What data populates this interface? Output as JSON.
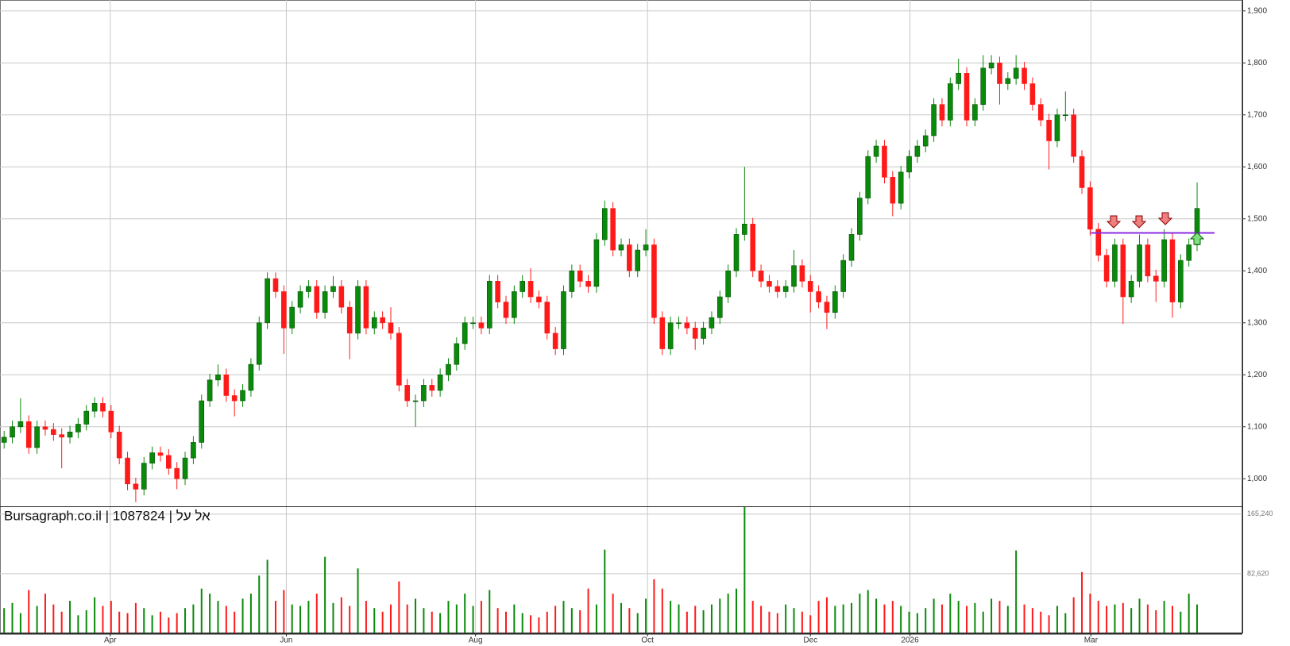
{
  "chart_data": [
    {
      "type": "candlestick",
      "up_color": "#0a8a0a",
      "down_color": "#ff1a1a",
      "xlim": [
        -0.5,
        150.5
      ],
      "ylim": [
        947,
        1921
      ],
      "yticks": [
        {
          "value": 1000,
          "label": "1,000"
        },
        {
          "value": 1100,
          "label": "1,100"
        },
        {
          "value": 1200,
          "label": "1,200"
        },
        {
          "value": 1300,
          "label": "1,300"
        },
        {
          "value": 1400,
          "label": "1,400"
        },
        {
          "value": 1500,
          "label": "1,500"
        },
        {
          "value": 1600,
          "label": "1,600"
        },
        {
          "value": 1700,
          "label": "1,700"
        },
        {
          "value": 1800,
          "label": "1,800"
        },
        {
          "value": 1900,
          "label": "1,900"
        }
      ],
      "grid": true,
      "level": 1473,
      "level_color": "#8a2be2",
      "open": [
        1070,
        1080,
        1100,
        1110,
        1060,
        1100,
        1095,
        1085,
        1080,
        1090,
        1105,
        1130,
        1145,
        1130,
        1090,
        1040,
        990,
        980,
        1030,
        1050,
        1045,
        1020,
        1000,
        1040,
        1070,
        1150,
        1190,
        1200,
        1160,
        1150,
        1170,
        1220,
        1300,
        1385,
        1360,
        1290,
        1330,
        1360,
        1370,
        1320,
        1360,
        1370,
        1330,
        1280,
        1370,
        1290,
        1310,
        1300,
        1280,
        1180,
        1150,
        1150,
        1180,
        1170,
        1200,
        1220,
        1260,
        1300,
        1300,
        1290,
        1380,
        1340,
        1310,
        1360,
        1380,
        1350,
        1340,
        1280,
        1250,
        1360,
        1400,
        1380,
        1370,
        1460,
        1520,
        1440,
        1450,
        1400,
        1440,
        1450,
        1310,
        1250,
        1300,
        1300,
        1290,
        1270,
        1290,
        1310,
        1350,
        1400,
        1470,
        1490,
        1400,
        1380,
        1370,
        1360,
        1370,
        1410,
        1380,
        1360,
        1340,
        1320,
        1360,
        1420,
        1470,
        1540,
        1620,
        1640,
        1580,
        1530,
        1590,
        1620,
        1640,
        1660,
        1720,
        1690,
        1760,
        1780,
        1690,
        1720,
        1790,
        1800,
        1760,
        1770,
        1790,
        1760,
        1720,
        1690,
        1650,
        1700,
        1700,
        1620,
        1560,
        1480,
        1430,
        1380,
        1450,
        1350,
        1380,
        1450,
        1390,
        1380,
        1460,
        1340,
        1420,
        1450
      ],
      "high": [
        1092,
        1112,
        1155,
        1122,
        1112,
        1112,
        1107,
        1097,
        1102,
        1117,
        1142,
        1157,
        1157,
        1142,
        1102,
        1052,
        1002,
        1042,
        1062,
        1062,
        1057,
        1032,
        1052,
        1082,
        1162,
        1202,
        1220,
        1212,
        1172,
        1182,
        1232,
        1312,
        1397,
        1397,
        1372,
        1342,
        1372,
        1382,
        1382,
        1372,
        1390,
        1382,
        1342,
        1382,
        1382,
        1322,
        1322,
        1330,
        1292,
        1192,
        1162,
        1192,
        1192,
        1212,
        1232,
        1272,
        1312,
        1312,
        1312,
        1392,
        1392,
        1352,
        1372,
        1392,
        1405,
        1362,
        1352,
        1292,
        1372,
        1412,
        1412,
        1392,
        1472,
        1535,
        1532,
        1462,
        1462,
        1452,
        1480,
        1462,
        1322,
        1312,
        1312,
        1312,
        1302,
        1302,
        1322,
        1362,
        1412,
        1482,
        1600,
        1502,
        1412,
        1392,
        1382,
        1382,
        1440,
        1422,
        1392,
        1372,
        1352,
        1372,
        1432,
        1482,
        1552,
        1632,
        1652,
        1652,
        1592,
        1602,
        1632,
        1652,
        1672,
        1732,
        1732,
        1772,
        1808,
        1792,
        1732,
        1815,
        1815,
        1812,
        1782,
        1815,
        1802,
        1772,
        1732,
        1702,
        1712,
        1745,
        1712,
        1632,
        1572,
        1492,
        1442,
        1462,
        1462,
        1392,
        1470,
        1462,
        1402,
        1480,
        1472,
        1432,
        1462,
        1570
      ],
      "low": [
        1058,
        1068,
        1088,
        1048,
        1048,
        1083,
        1073,
        1020,
        1068,
        1078,
        1093,
        1118,
        1118,
        1078,
        1028,
        978,
        955,
        968,
        1018,
        1033,
        1008,
        980,
        988,
        1028,
        1058,
        1138,
        1178,
        1148,
        1120,
        1138,
        1158,
        1208,
        1288,
        1348,
        1240,
        1278,
        1318,
        1348,
        1308,
        1308,
        1348,
        1318,
        1230,
        1268,
        1278,
        1278,
        1288,
        1268,
        1168,
        1138,
        1100,
        1138,
        1158,
        1158,
        1188,
        1208,
        1248,
        1288,
        1278,
        1278,
        1328,
        1298,
        1298,
        1348,
        1338,
        1328,
        1268,
        1238,
        1238,
        1348,
        1368,
        1358,
        1358,
        1448,
        1428,
        1428,
        1388,
        1388,
        1428,
        1298,
        1238,
        1238,
        1288,
        1278,
        1248,
        1258,
        1278,
        1298,
        1338,
        1388,
        1458,
        1388,
        1368,
        1358,
        1348,
        1348,
        1358,
        1368,
        1320,
        1328,
        1288,
        1308,
        1348,
        1408,
        1458,
        1528,
        1608,
        1568,
        1505,
        1518,
        1578,
        1608,
        1628,
        1648,
        1678,
        1678,
        1748,
        1678,
        1678,
        1708,
        1778,
        1720,
        1748,
        1758,
        1748,
        1708,
        1678,
        1595,
        1638,
        1688,
        1608,
        1548,
        1468,
        1418,
        1368,
        1368,
        1298,
        1338,
        1368,
        1378,
        1340,
        1368,
        1310,
        1328,
        1408,
        1438
      ],
      "close": [
        1080,
        1100,
        1110,
        1060,
        1100,
        1095,
        1085,
        1080,
        1090,
        1105,
        1130,
        1145,
        1130,
        1090,
        1040,
        990,
        980,
        1030,
        1050,
        1045,
        1020,
        1000,
        1040,
        1070,
        1150,
        1190,
        1200,
        1160,
        1150,
        1170,
        1220,
        1300,
        1385,
        1360,
        1290,
        1330,
        1360,
        1370,
        1320,
        1360,
        1370,
        1330,
        1280,
        1370,
        1290,
        1310,
        1300,
        1280,
        1180,
        1150,
        1150,
        1180,
        1170,
        1200,
        1220,
        1260,
        1300,
        1300,
        1290,
        1380,
        1340,
        1310,
        1360,
        1380,
        1350,
        1340,
        1280,
        1250,
        1360,
        1400,
        1380,
        1370,
        1460,
        1520,
        1440,
        1450,
        1400,
        1440,
        1450,
        1310,
        1250,
        1300,
        1300,
        1290,
        1270,
        1290,
        1310,
        1350,
        1400,
        1470,
        1490,
        1400,
        1380,
        1370,
        1360,
        1370,
        1410,
        1380,
        1360,
        1340,
        1320,
        1360,
        1420,
        1470,
        1540,
        1620,
        1640,
        1580,
        1530,
        1590,
        1620,
        1640,
        1660,
        1720,
        1690,
        1760,
        1780,
        1690,
        1720,
        1790,
        1800,
        1760,
        1770,
        1790,
        1760,
        1720,
        1690,
        1650,
        1700,
        1700,
        1620,
        1560,
        1480,
        1430,
        1380,
        1450,
        1350,
        1380,
        1450,
        1390,
        1380,
        1460,
        1340,
        1420,
        1450,
        1520
      ]
    },
    {
      "type": "bar",
      "annotation": "Bursagraph.co.il | 1087824 | אל על",
      "xlim": [
        -0.5,
        150.5
      ],
      "xticks": [
        {
          "value": 12.9,
          "label": "Apr"
        },
        {
          "value": 34.3,
          "label": "Jun"
        },
        {
          "value": 57.3,
          "label": "Aug"
        },
        {
          "value": 78.2,
          "label": "Oct"
        },
        {
          "value": 98,
          "label": "Dec"
        },
        {
          "value": 110.1,
          "label": "2026"
        },
        {
          "value": 132.1,
          "label": "Mar"
        }
      ],
      "ylim": [
        0,
        175000
      ],
      "yticks": [
        {
          "value": 82620,
          "label": "82,620"
        },
        {
          "value": 165240,
          "label": "165,240"
        }
      ],
      "grid": true,
      "values": [
        35000,
        42000,
        28000,
        60000,
        38000,
        55000,
        40000,
        30000,
        45000,
        25000,
        32000,
        50000,
        38000,
        45000,
        30000,
        28000,
        42000,
        35000,
        25000,
        30000,
        22000,
        28000,
        35000,
        40000,
        62000,
        55000,
        45000,
        38000,
        30000,
        48000,
        55000,
        80000,
        102000,
        45000,
        60000,
        40000,
        38000,
        45000,
        55000,
        106000,
        42000,
        50000,
        38000,
        90000,
        45000,
        35000,
        30000,
        40000,
        72000,
        40000,
        48000,
        35000,
        30000,
        28000,
        45000,
        40000,
        55000,
        38000,
        45000,
        60000,
        35000,
        30000,
        40000,
        28000,
        25000,
        22000,
        30000,
        38000,
        45000,
        35000,
        32000,
        62000,
        40000,
        116000,
        55000,
        42000,
        35000,
        28000,
        48000,
        75000,
        62000,
        45000,
        40000,
        30000,
        38000,
        32000,
        40000,
        48000,
        55000,
        62000,
        175000,
        45000,
        38000,
        30000,
        28000,
        40000,
        35000,
        30000,
        25000,
        45000,
        50000,
        38000,
        40000,
        42000,
        55000,
        60000,
        48000,
        40000,
        45000,
        38000,
        30000,
        28000,
        35000,
        48000,
        40000,
        55000,
        45000,
        38000,
        42000,
        30000,
        48000,
        45000,
        38000,
        115000,
        40000,
        35000,
        30000,
        25000,
        38000,
        28000,
        50000,
        85000,
        55000,
        45000,
        38000,
        40000,
        42000,
        35000,
        48000,
        40000,
        32000,
        45000,
        38000,
        30000,
        55000,
        40000
      ]
    }
  ]
}
